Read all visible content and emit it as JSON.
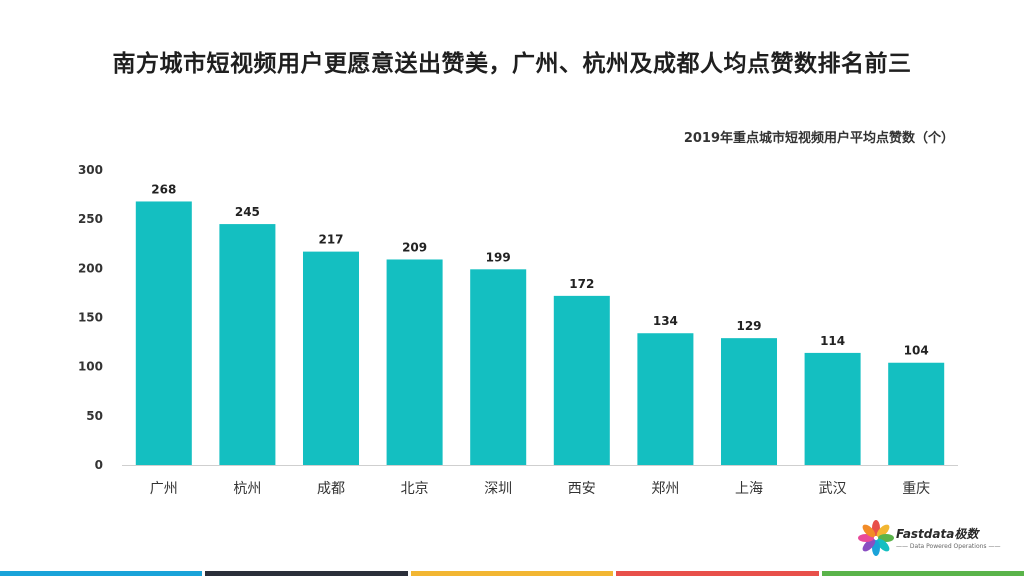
{
  "page": {
    "title": "南方城市短视频用户更愿意送出赞美，广州、杭州及成都人均点赞数排名前三"
  },
  "chart_data": {
    "type": "bar",
    "title": "2019年重点城市短视频用户平均点赞数（个）",
    "categories": [
      "广州",
      "杭州",
      "成都",
      "北京",
      "深圳",
      "西安",
      "郑州",
      "上海",
      "武汉",
      "重庆"
    ],
    "values": [
      268,
      245,
      217,
      209,
      199,
      172,
      134,
      129,
      114,
      104
    ],
    "xlabel": "",
    "ylabel": "",
    "ylim": [
      0,
      300
    ],
    "yticks": [
      0,
      50,
      100,
      150,
      200,
      250,
      300
    ],
    "grid": false,
    "legend": "none",
    "bar_color": "#14bfc1",
    "data_labels": true
  },
  "logo": {
    "name": "Fastdata极数",
    "tagline": "—— Data Powered Operations ——"
  },
  "footer": {
    "colors": [
      "#1aa3d9",
      "#2b2f3a",
      "#f2b632",
      "#e8504a",
      "#5ab44a"
    ]
  }
}
